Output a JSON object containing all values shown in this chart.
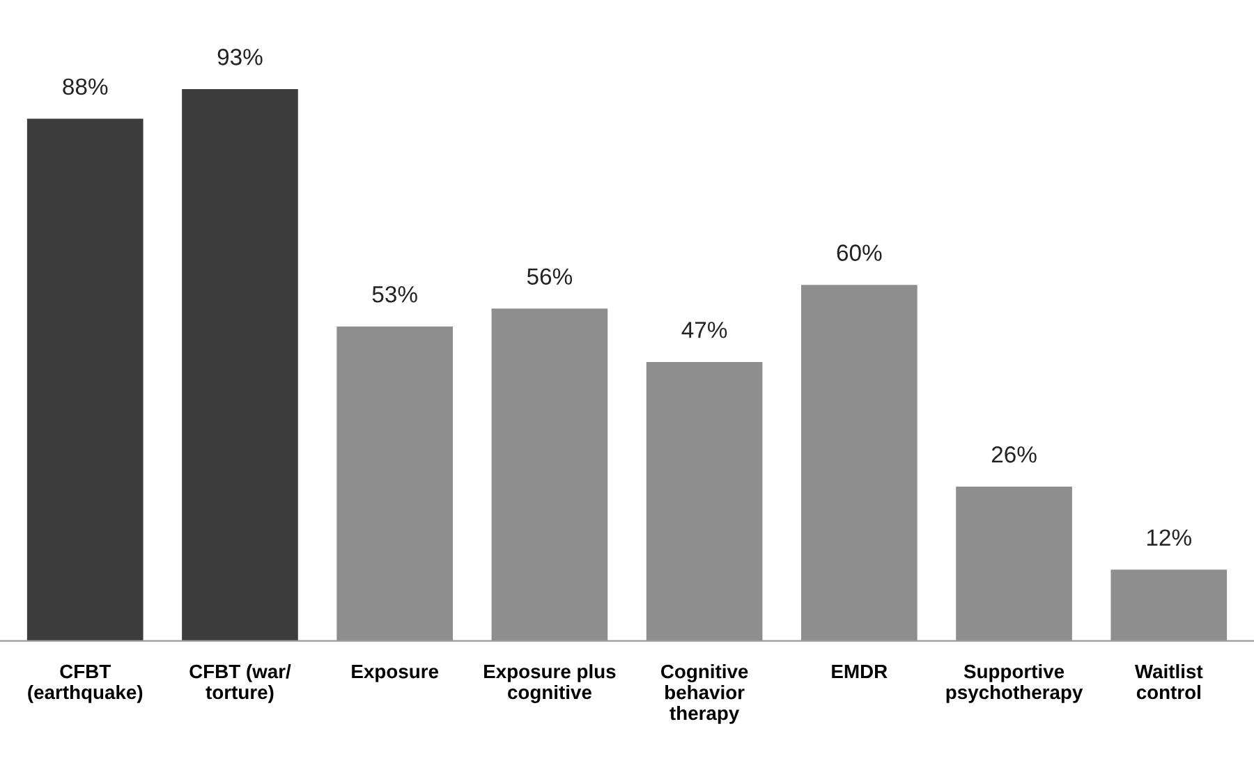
{
  "chart_data": {
    "type": "bar",
    "categories": [
      "CFBT\n(earthquake)",
      "CFBT (war/\ntorture)",
      "Exposure",
      "Exposure plus\ncognitive",
      "Cognitive\nbehavior\ntherapy",
      "EMDR",
      "Supportive\npsychotherapy",
      "Waitlist\ncontrol"
    ],
    "values": [
      88,
      93,
      53,
      56,
      47,
      60,
      26,
      12
    ],
    "colors": [
      "#3c3c3c",
      "#3c3c3c",
      "#8e8e8e",
      "#8e8e8e",
      "#8e8e8e",
      "#8e8e8e",
      "#8e8e8e",
      "#8e8e8e"
    ],
    "value_labels": [
      "88%",
      "93%",
      "53%",
      "56%",
      "47%",
      "60%",
      "26%",
      "12%"
    ],
    "grid": false,
    "legend": false
  }
}
